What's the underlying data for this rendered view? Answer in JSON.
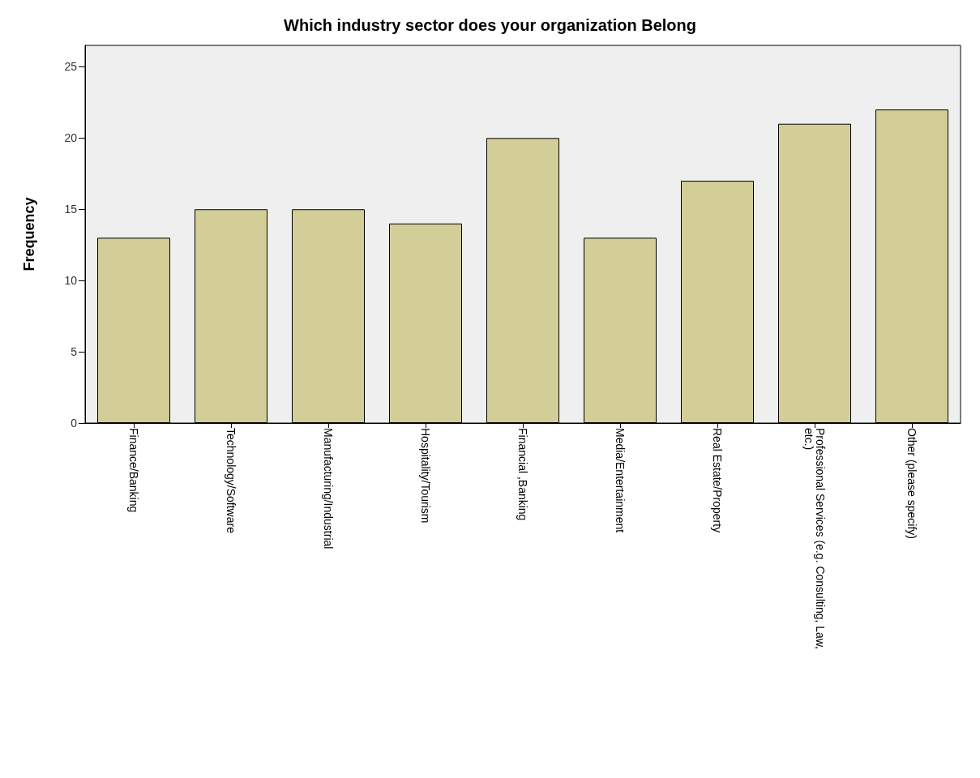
{
  "chart_data": {
    "type": "bar",
    "title": "Which industry sector does your organization Belong",
    "ylabel": "Frequency",
    "categories": [
      "Finance/Banking",
      "Technology/Software",
      "Manufacturing/Industrial",
      "Hospitality/Tourism",
      "Financial ,Banking",
      "Media/Entertainment",
      "Real Estate/Property",
      "Professional Services (e.g. Consulting, Law, etc.)",
      "Other (please specify)"
    ],
    "values": [
      13,
      15,
      15,
      14,
      20,
      13,
      17,
      21,
      22
    ],
    "color": "#d3ce97",
    "ylim": [
      0,
      26.5
    ],
    "yticks": [
      0,
      5,
      10,
      15,
      20,
      25
    ],
    "grid": false
  }
}
